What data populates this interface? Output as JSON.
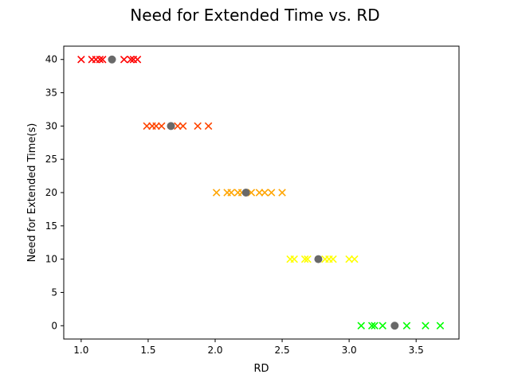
{
  "chart_data": {
    "type": "scatter",
    "title": "Need for Extended Time vs. RD",
    "xlabel": "RD",
    "ylabel": "Need for Extended Time(s)",
    "xlim": [
      0.87,
      3.82
    ],
    "ylim": [
      -2,
      42
    ],
    "xticks": [
      1.0,
      1.5,
      2.0,
      2.5,
      3.0,
      3.5
    ],
    "xtick_labels": [
      "1.0",
      "1.5",
      "2.0",
      "2.5",
      "3.0",
      "3.5"
    ],
    "yticks": [
      0,
      5,
      10,
      15,
      20,
      25,
      30,
      35,
      40
    ],
    "ytick_labels": [
      "0",
      "5",
      "10",
      "15",
      "20",
      "25",
      "30",
      "35",
      "40"
    ],
    "grid": false,
    "series": [
      {
        "marker": "x",
        "color": "#ff0000",
        "points": [
          [
            1.0,
            40
          ],
          [
            1.08,
            40
          ],
          [
            1.11,
            40
          ],
          [
            1.14,
            40
          ],
          [
            1.16,
            40
          ],
          [
            1.32,
            40
          ],
          [
            1.37,
            40
          ],
          [
            1.39,
            40
          ],
          [
            1.42,
            40
          ]
        ]
      },
      {
        "marker": "x",
        "color": "#ff4500",
        "points": [
          [
            1.49,
            30
          ],
          [
            1.53,
            30
          ],
          [
            1.56,
            30
          ],
          [
            1.6,
            30
          ],
          [
            1.72,
            30
          ],
          [
            1.76,
            30
          ],
          [
            1.87,
            30
          ],
          [
            1.95,
            30
          ]
        ]
      },
      {
        "marker": "x",
        "color": "#ffa500",
        "points": [
          [
            2.01,
            20
          ],
          [
            2.09,
            20
          ],
          [
            2.12,
            20
          ],
          [
            2.17,
            20
          ],
          [
            2.2,
            20
          ],
          [
            2.27,
            20
          ],
          [
            2.33,
            20
          ],
          [
            2.37,
            20
          ],
          [
            2.42,
            20
          ],
          [
            2.5,
            20
          ]
        ]
      },
      {
        "marker": "x",
        "color": "#ffff00",
        "points": [
          [
            2.56,
            10
          ],
          [
            2.59,
            10
          ],
          [
            2.67,
            10
          ],
          [
            2.69,
            10
          ],
          [
            2.82,
            10
          ],
          [
            2.85,
            10
          ],
          [
            2.88,
            10
          ],
          [
            3.0,
            10
          ],
          [
            3.04,
            10
          ]
        ]
      },
      {
        "marker": "x",
        "color": "#00ff00",
        "points": [
          [
            3.09,
            0
          ],
          [
            3.17,
            0
          ],
          [
            3.19,
            0
          ],
          [
            3.25,
            0
          ],
          [
            3.43,
            0
          ],
          [
            3.57,
            0
          ],
          [
            3.68,
            0
          ]
        ]
      },
      {
        "marker": "o",
        "color": "#696969",
        "points": [
          [
            1.23,
            40
          ],
          [
            1.67,
            30
          ],
          [
            2.23,
            20
          ],
          [
            2.77,
            10
          ],
          [
            3.34,
            0
          ]
        ]
      }
    ]
  }
}
